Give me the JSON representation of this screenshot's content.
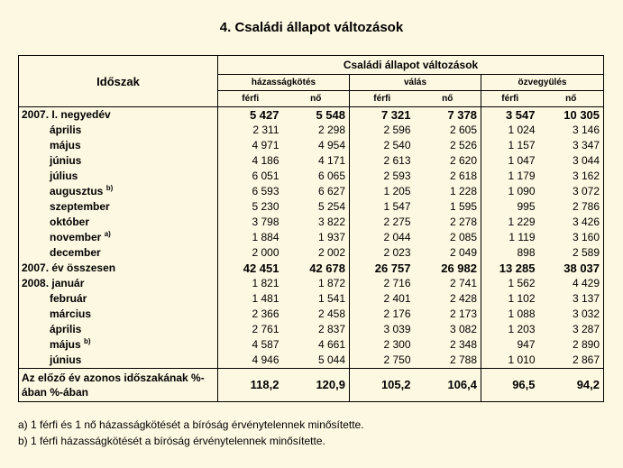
{
  "title": "4. Családi állapot változások",
  "header": {
    "period": "Időszak",
    "group": "Családi állapot változások",
    "subgroups": [
      "házasságkötés",
      "válás",
      "özvegyülés"
    ],
    "male": "férfi",
    "female": "nő"
  },
  "rows": [
    {
      "label": "2007. I. negyedév",
      "indent": false,
      "bold": true,
      "sup": "",
      "v": [
        "5 427",
        "5 548",
        "7 321",
        "7 378",
        "3 547",
        "10 305"
      ]
    },
    {
      "label": "április",
      "indent": true,
      "bold": false,
      "sup": "",
      "v": [
        "2 311",
        "2 298",
        "2 596",
        "2 605",
        "1 024",
        "3 146"
      ]
    },
    {
      "label": "május",
      "indent": true,
      "bold": false,
      "sup": "",
      "v": [
        "4 971",
        "4 954",
        "2 540",
        "2 526",
        "1 157",
        "3 347"
      ]
    },
    {
      "label": "június",
      "indent": true,
      "bold": false,
      "sup": "",
      "v": [
        "4 186",
        "4 171",
        "2 613",
        "2 620",
        "1 047",
        "3 044"
      ]
    },
    {
      "label": "július",
      "indent": true,
      "bold": false,
      "sup": "",
      "v": [
        "6 051",
        "6 065",
        "2 593",
        "2 618",
        "1 179",
        "3 162"
      ]
    },
    {
      "label": "augusztus",
      "indent": true,
      "bold": false,
      "sup": "b)",
      "v": [
        "6 593",
        "6 627",
        "1 205",
        "1 228",
        "1 090",
        "3 072"
      ]
    },
    {
      "label": "szeptember",
      "indent": true,
      "bold": false,
      "sup": "",
      "v": [
        "5 230",
        "5 254",
        "1 547",
        "1 595",
        "995",
        "2 786"
      ]
    },
    {
      "label": "október",
      "indent": true,
      "bold": false,
      "sup": "",
      "v": [
        "3 798",
        "3 822",
        "2 275",
        "2 278",
        "1 229",
        "3 426"
      ]
    },
    {
      "label": "november",
      "indent": true,
      "bold": false,
      "sup": "a)",
      "v": [
        "1 884",
        "1 937",
        "2 044",
        "2 085",
        "1 119",
        "3 160"
      ]
    },
    {
      "label": "december",
      "indent": true,
      "bold": false,
      "sup": "",
      "v": [
        "2 000",
        "2 002",
        "2 023",
        "2 049",
        "898",
        "2 589"
      ]
    },
    {
      "label": "2007. év összesen",
      "indent": false,
      "bold": true,
      "sup": "",
      "v": [
        "42 451",
        "42 678",
        "26 757",
        "26 982",
        "13 285",
        "38 037"
      ]
    },
    {
      "label": "2008. január",
      "indent": false,
      "bold": false,
      "sup": "",
      "v": [
        "1 821",
        "1 872",
        "2 716",
        "2 741",
        "1 562",
        "4 429"
      ]
    },
    {
      "label": "február",
      "indent": true,
      "bold": false,
      "sup": "",
      "v": [
        "1 481",
        "1 541",
        "2 401",
        "2 428",
        "1 102",
        "3 137"
      ]
    },
    {
      "label": "március",
      "indent": true,
      "bold": false,
      "sup": "",
      "v": [
        "2 366",
        "2 458",
        "2 176",
        "2 173",
        "1 088",
        "3 032"
      ]
    },
    {
      "label": "április",
      "indent": true,
      "bold": false,
      "sup": "",
      "v": [
        "2 761",
        "2 837",
        "3 039",
        "3 082",
        "1 203",
        "3 287"
      ]
    },
    {
      "label": "május",
      "indent": true,
      "bold": false,
      "sup": "b)",
      "v": [
        "4 587",
        "4 661",
        "2 300",
        "2 348",
        "947",
        "2 890"
      ]
    },
    {
      "label": "június",
      "indent": true,
      "bold": false,
      "sup": "",
      "v": [
        "4 946",
        "5 044",
        "2 750",
        "2 788",
        "1 010",
        "2 867"
      ]
    }
  ],
  "avg_row": {
    "label": "Az előző év azonos időszakának %-ában %-ában",
    "v": [
      "118,2",
      "120,9",
      "105,2",
      "106,4",
      "96,5",
      "94,2"
    ]
  },
  "notes": [
    "a) 1 férfi és 1 nő házasságkötését a bíróság érvénytelennek minősítette.",
    "b) 1 férfi házasságkötését a bíróság érvénytelennek minősítette."
  ]
}
